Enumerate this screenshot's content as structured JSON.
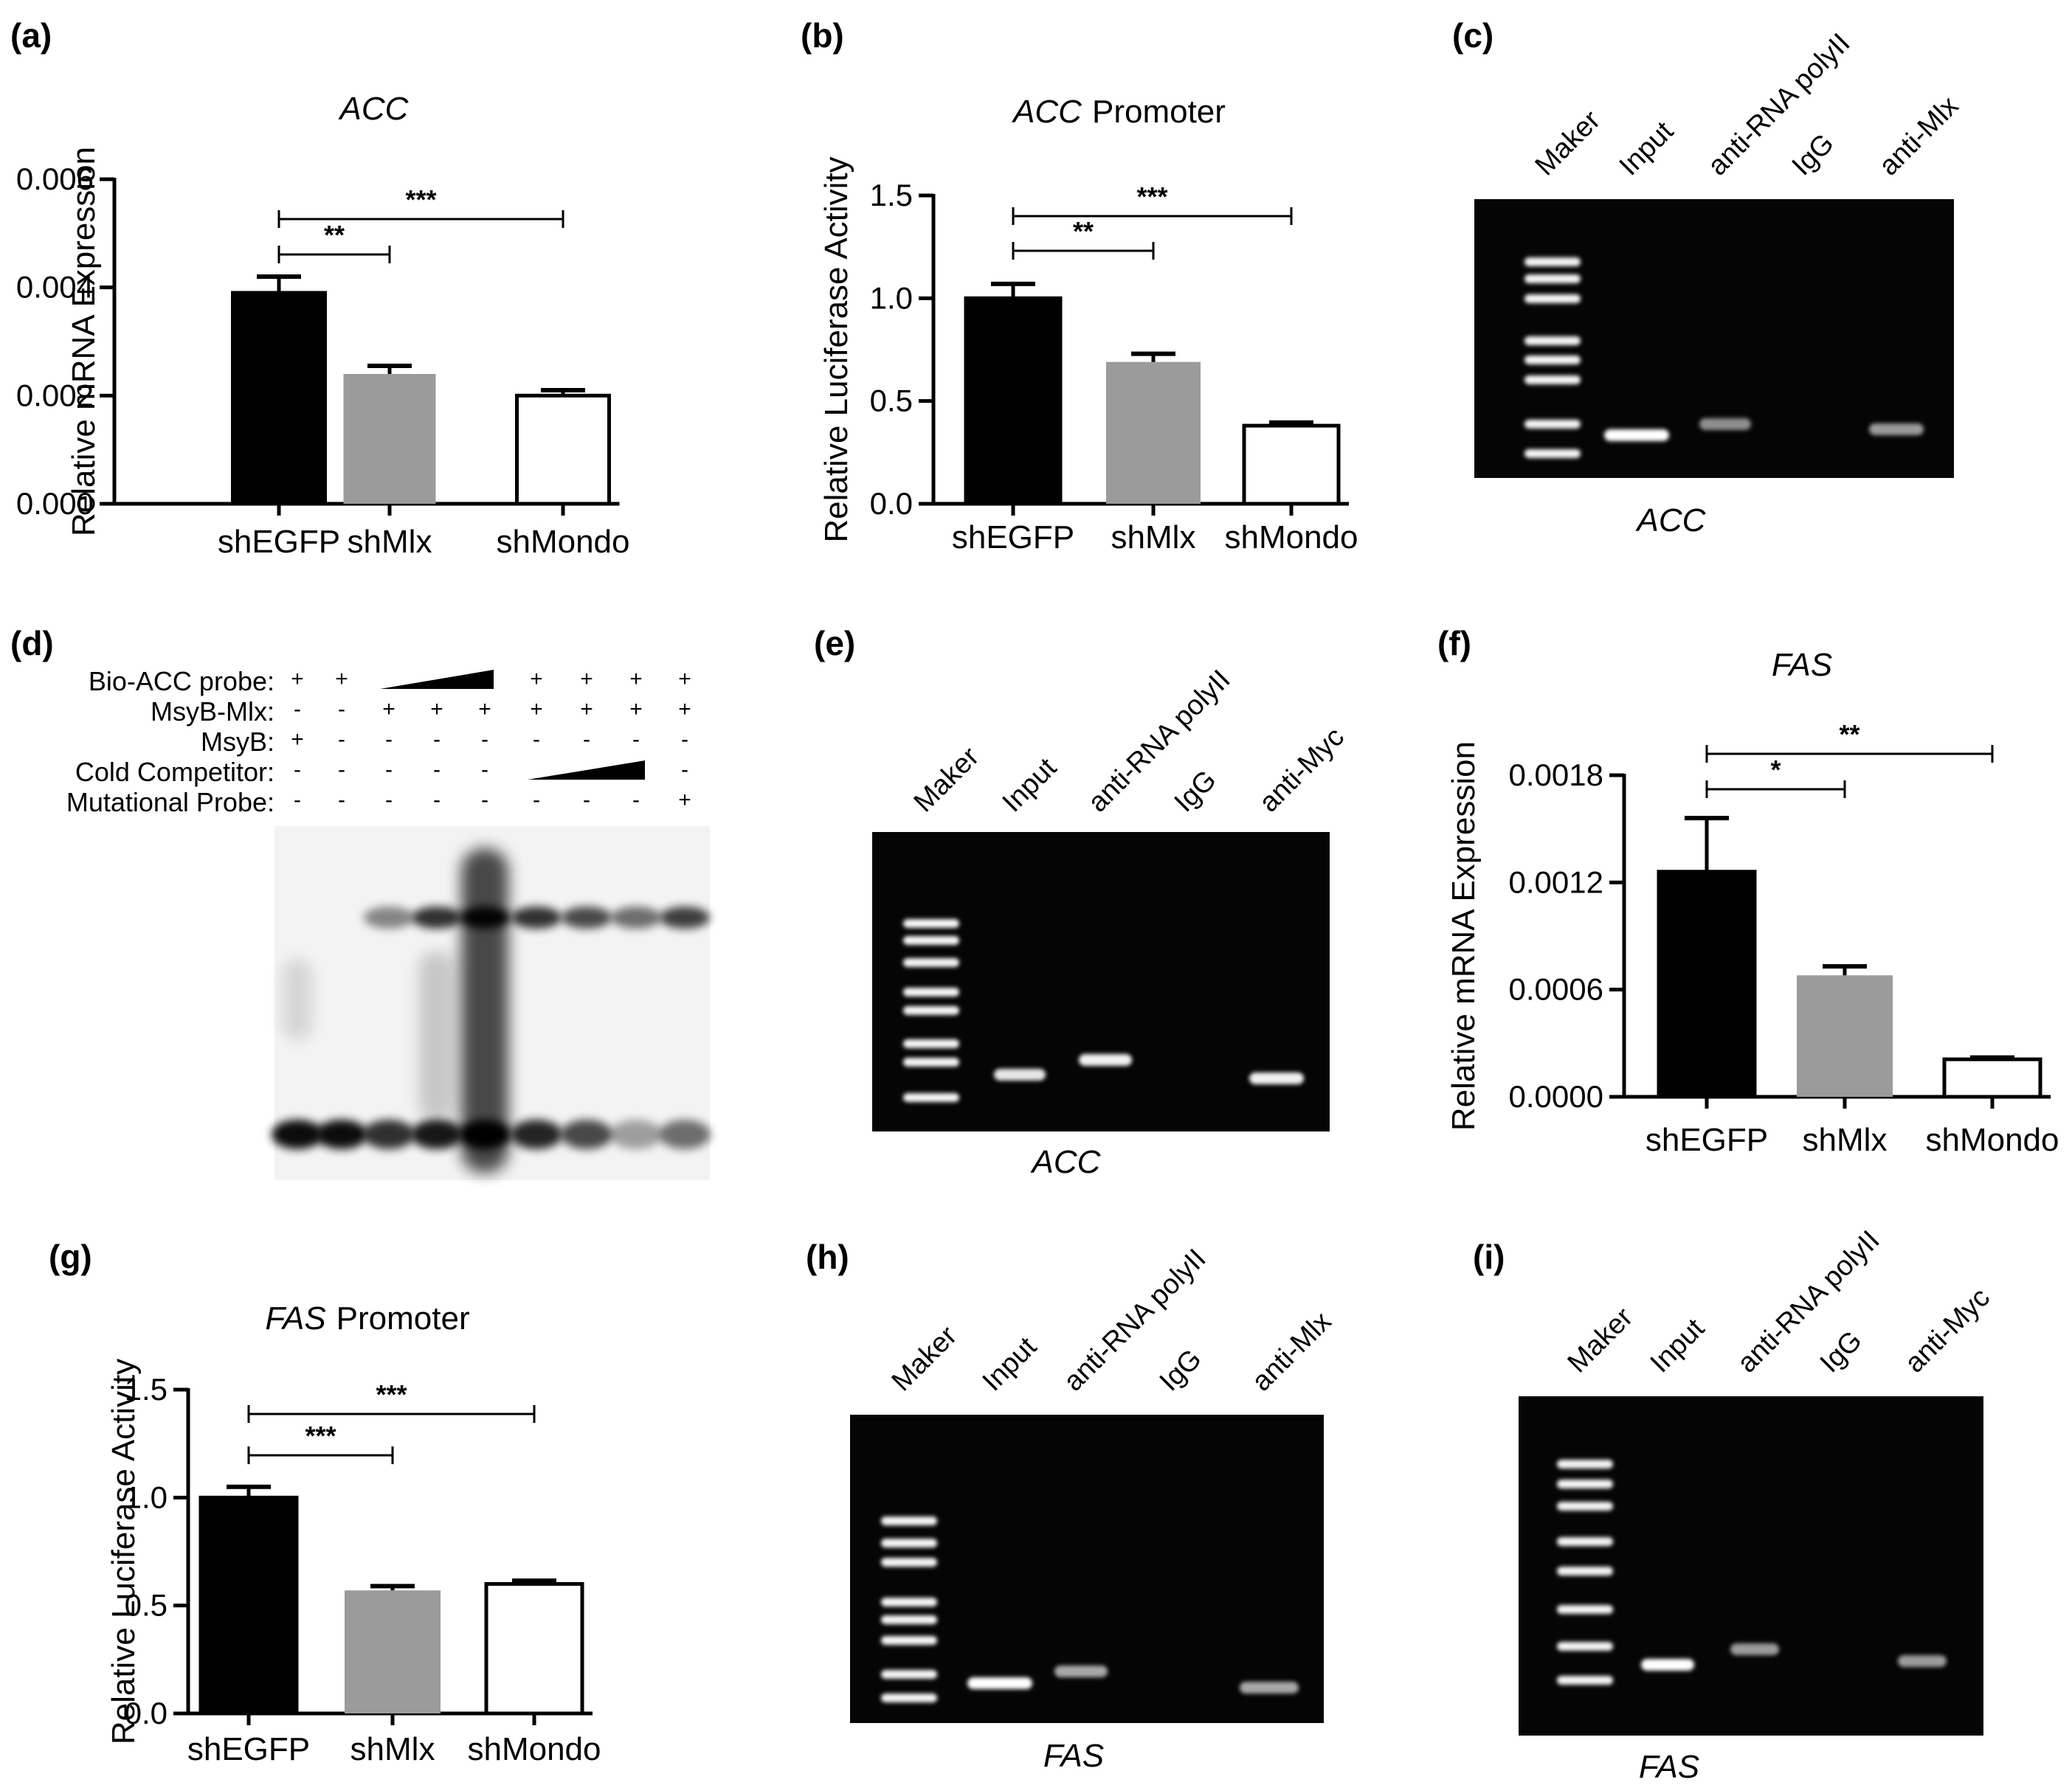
{
  "chart_data": [
    {
      "panel": "(a)",
      "type": "bar",
      "title_italic": "ACC",
      "title_rest": "",
      "ylabel": "Relative mRNA Expression",
      "categories": [
        "shEGFP",
        "shMlx",
        "shMondo"
      ],
      "values": [
        0.0039,
        0.0024,
        0.002
      ],
      "errors": [
        0.0003,
        0.00015,
        0.0001
      ],
      "yticks": [
        "0.000",
        "0.002",
        "0.004",
        "0.006"
      ],
      "ylim": [
        0,
        0.006
      ],
      "colors": [
        "#000000",
        "#9b9b9b",
        "#ffffff"
      ],
      "significance": [
        {
          "from": 0,
          "to": 1,
          "label": "**"
        },
        {
          "from": 0,
          "to": 2,
          "label": "***"
        }
      ]
    },
    {
      "panel": "(b)",
      "type": "bar",
      "title_italic": "ACC",
      "title_rest": "Promoter",
      "ylabel": "Relative Luciferase Activity",
      "categories": [
        "shEGFP",
        "shMlx",
        "shMondo"
      ],
      "values": [
        1.0,
        0.69,
        0.38
      ],
      "errors": [
        0.07,
        0.04,
        0.015
      ],
      "yticks": [
        "0.0",
        "0.5",
        "1.0",
        "1.5"
      ],
      "ylim": [
        0,
        1.5
      ],
      "colors": [
        "#000000",
        "#9b9b9b",
        "#ffffff"
      ],
      "significance": [
        {
          "from": 0,
          "to": 1,
          "label": "**"
        },
        {
          "from": 0,
          "to": 2,
          "label": "***"
        }
      ]
    },
    {
      "panel": "(f)",
      "type": "bar",
      "title_italic": "FAS",
      "title_rest": "",
      "ylabel": "Relative mRNA Expression",
      "categories": [
        "shEGFP",
        "shMlx",
        "shMondo"
      ],
      "values": [
        0.00126,
        0.00068,
        0.00021
      ],
      "errors": [
        0.0003,
        5e-05,
        1e-05
      ],
      "yticks": [
        "0.0000",
        "0.0006",
        "0.0012",
        "0.0018"
      ],
      "ylim": [
        0,
        0.0018
      ],
      "colors": [
        "#000000",
        "#9b9b9b",
        "#ffffff"
      ],
      "significance": [
        {
          "from": 0,
          "to": 1,
          "label": "*"
        },
        {
          "from": 0,
          "to": 2,
          "label": "**"
        }
      ]
    },
    {
      "panel": "(g)",
      "type": "bar",
      "title_italic": "FAS",
      "title_rest": "Promoter",
      "ylabel": "Relative Luciferase Activity",
      "categories": [
        "shEGFP",
        "shMlx",
        "shMondo"
      ],
      "values": [
        1.0,
        0.57,
        0.6
      ],
      "errors": [
        0.05,
        0.02,
        0.015
      ],
      "yticks": [
        "0.0",
        "0.5",
        "1.0",
        "1.5"
      ],
      "ylim": [
        0,
        1.5
      ],
      "colors": [
        "#000000",
        "#9b9b9b",
        "#ffffff"
      ],
      "significance": [
        {
          "from": 0,
          "to": 1,
          "label": "***"
        },
        {
          "from": 0,
          "to": 2,
          "label": "***"
        }
      ]
    }
  ],
  "gels": [
    {
      "panel": "(c)",
      "lanes": [
        "Maker",
        "Input",
        "anti-RNA polyII",
        "IgG",
        "anti-Mlx"
      ],
      "caption": "ACC"
    },
    {
      "panel": "(e)",
      "lanes": [
        "Maker",
        "Input",
        "anti-RNA polyII",
        "IgG",
        "anti-Myc"
      ],
      "caption": "ACC"
    },
    {
      "panel": "(h)",
      "lanes": [
        "Maker",
        "Input",
        "anti-RNA polyII",
        "IgG",
        "anti-Mlx"
      ],
      "caption": "FAS"
    },
    {
      "panel": "(i)",
      "lanes": [
        "Maker",
        "Input",
        "anti-RNA polyII",
        "IgG",
        "anti-Myc"
      ],
      "caption": "FAS"
    }
  ],
  "emsa": {
    "panel": "(d)",
    "rows": [
      {
        "label": "Bio-ACC probe:",
        "signs": [
          "+",
          "+",
          "ramp",
          "",
          "",
          "+",
          "+",
          "+",
          "+"
        ]
      },
      {
        "label": "MsyB-Mlx:",
        "signs": [
          "-",
          "-",
          "+",
          "+",
          "+",
          "+",
          "+",
          "+",
          "+"
        ]
      },
      {
        "label": "MsyB:",
        "signs": [
          "+",
          "-",
          "-",
          "-",
          "-",
          "-",
          "-",
          "-",
          "-"
        ]
      },
      {
        "label": "Cold Competitor:",
        "signs": [
          "-",
          "-",
          "-",
          "-",
          "-",
          "ramp",
          "",
          "",
          "-"
        ]
      },
      {
        "label": "Mutational Probe:",
        "signs": [
          "-",
          "-",
          "-",
          "-",
          "-",
          "-",
          "-",
          "-",
          "+"
        ]
      }
    ]
  }
}
